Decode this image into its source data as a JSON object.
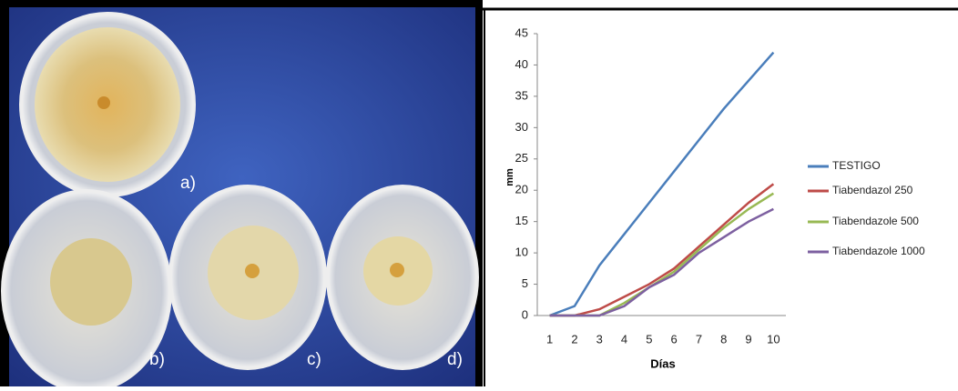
{
  "photo": {
    "labels": [
      "a)",
      "b)",
      "c)",
      "d)"
    ]
  },
  "chart_data": {
    "type": "line",
    "y_label": "mm",
    "x_label": "Días",
    "categories": [
      "1",
      "2",
      "3",
      "4",
      "5",
      "6",
      "7",
      "8",
      "9",
      "10"
    ],
    "series": [
      {
        "name": "TESTIGO",
        "color": "#4a7ebb",
        "values": [
          0,
          1.5,
          8,
          13,
          18,
          23,
          28,
          33,
          37.5,
          42
        ]
      },
      {
        "name": "Tiabendazol 250",
        "color": "#be4b48",
        "values": [
          0,
          0,
          1,
          3,
          5,
          7.5,
          11,
          14.5,
          18,
          21
        ]
      },
      {
        "name": "Tiabendazole 500",
        "color": "#98b954",
        "values": [
          0,
          0,
          0,
          2,
          4.5,
          7,
          10.5,
          14,
          17,
          19.5
        ]
      },
      {
        "name": "Tiabendazole 1000",
        "color": "#7d60a0",
        "values": [
          0,
          0,
          0,
          1.5,
          4.5,
          6.5,
          10,
          12.5,
          15,
          17
        ]
      }
    ],
    "ylim": [
      0,
      45
    ],
    "yticks": [
      0,
      5,
      10,
      15,
      20,
      25,
      30,
      35,
      40,
      45
    ],
    "grid": false,
    "legend": "right"
  }
}
